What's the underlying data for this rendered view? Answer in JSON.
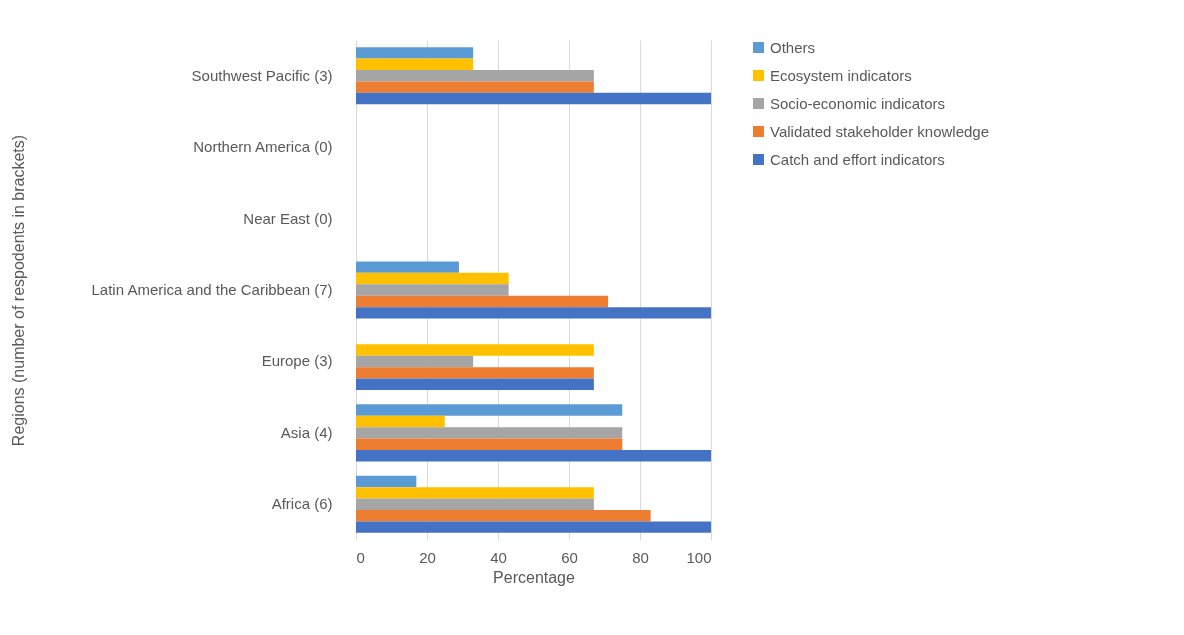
{
  "chart_data": {
    "type": "bar",
    "orientation": "horizontal",
    "xlabel": "Percentage",
    "ylabel": "Regions (number of respodents in brackets)",
    "categories": [
      "Southwest Pacific (3)",
      "Northern America (0)",
      "Near East (0)",
      "Latin America and the Caribbean (7)",
      "Europe (3)",
      "Asia (4)",
      "Africa (6)"
    ],
    "series": [
      {
        "name": "Others",
        "color": "#5b9bd5",
        "values": [
          33,
          null,
          null,
          29,
          null,
          75,
          17
        ]
      },
      {
        "name": "Ecosystem indicators",
        "color": "#ffc000",
        "values": [
          33,
          null,
          null,
          43,
          67,
          25,
          67
        ]
      },
      {
        "name": "Socio-economic indicators",
        "color": "#a5a5a5",
        "values": [
          67,
          null,
          null,
          43,
          33,
          75,
          67
        ]
      },
      {
        "name": "Validated stakeholder knowledge",
        "color": "#ed7d31",
        "values": [
          67,
          null,
          null,
          71,
          67,
          75,
          83
        ]
      },
      {
        "name": "Catch and effort indicators",
        "color": "#4472c4",
        "values": [
          100,
          null,
          null,
          100,
          67,
          100,
          100
        ]
      }
    ],
    "xlim": [
      0,
      100
    ],
    "xticks": [
      0,
      20,
      40,
      60,
      80,
      100
    ],
    "grid": "x",
    "legend": "right"
  }
}
